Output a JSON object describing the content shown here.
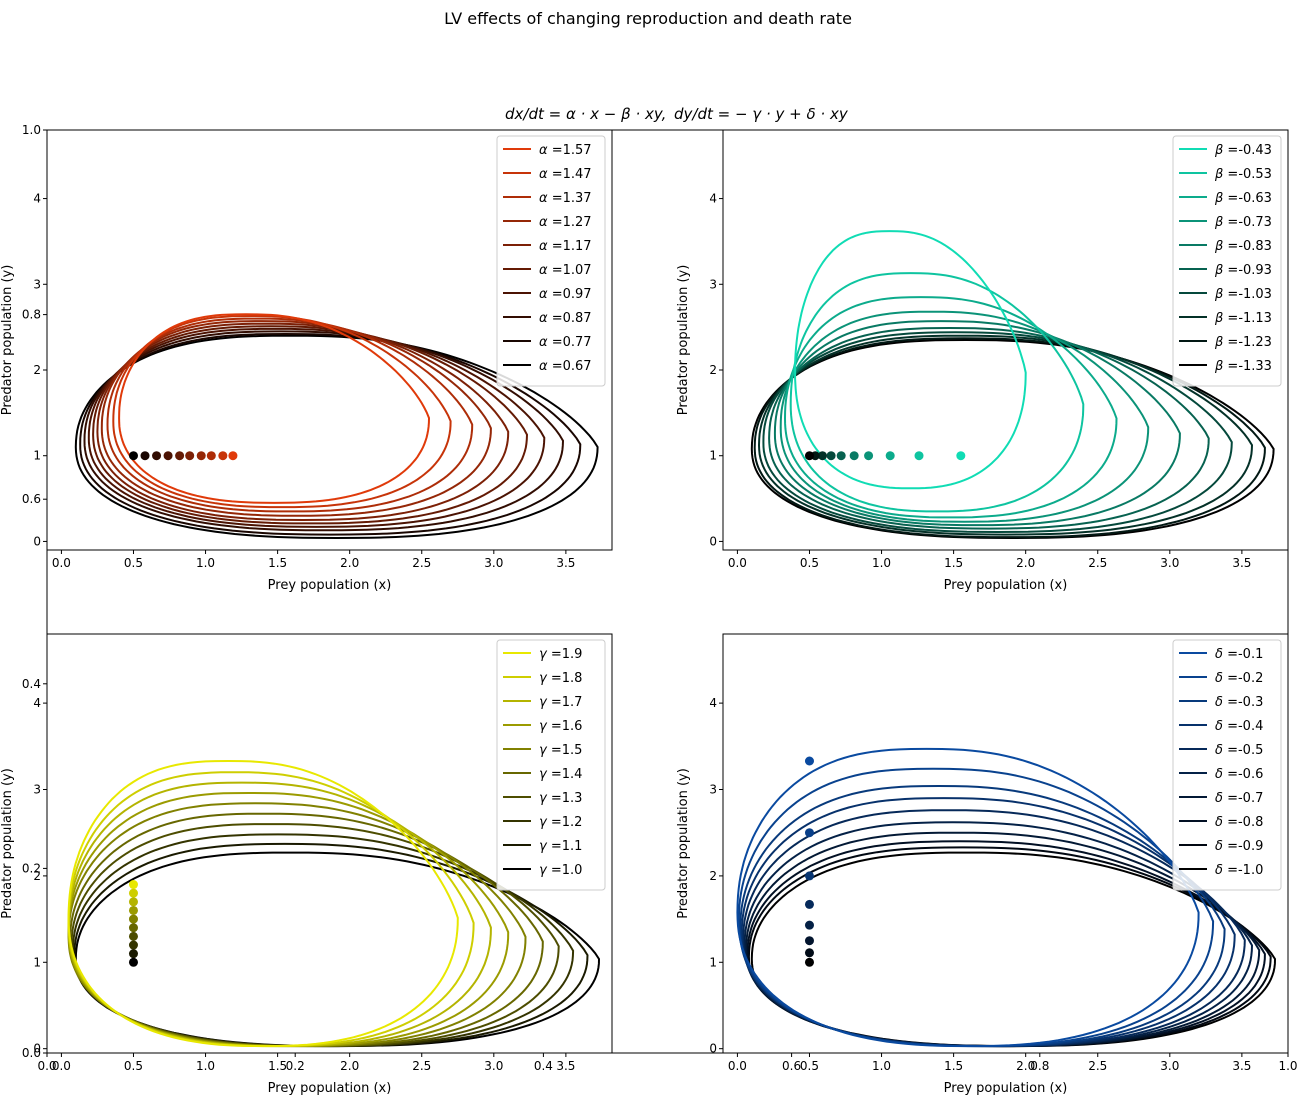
{
  "figure": {
    "suptitle": "LV effects of changing reproduction and death rate",
    "equation_left": "dx/dt = α · x − β · xy,",
    "equation_right": "dy/dt = − γ · y + δ · xy",
    "background_ticks": {
      "x": [
        "0.0",
        "0.2",
        "0.4",
        "0.6",
        "0.8",
        "1.0"
      ],
      "y": [
        "0.0",
        "0.2",
        "0.4",
        "0.6",
        "0.8",
        "1.0"
      ]
    }
  },
  "chart_data": [
    {
      "type": "line",
      "id": "alpha",
      "xlabel": "Prey population (x)",
      "ylabel": "Predator population (y)",
      "xlim": [
        -0.1,
        3.82
      ],
      "ylim": [
        -0.1,
        4.8
      ],
      "xticks": [
        "0.0",
        "0.5",
        "1.0",
        "1.5",
        "2.0",
        "2.5",
        "3.0",
        "3.5"
      ],
      "yticks": [
        "0",
        "1",
        "2",
        "3",
        "4"
      ],
      "legend_position": "top-right",
      "legend_symbol": "α",
      "color_start": "#e03a0a",
      "color_end": "#000000",
      "series": [
        {
          "name": "=1.57",
          "xmin": 0.4,
          "xmax": 2.55,
          "ymin": 0.45,
          "ymax": 2.65
        },
        {
          "name": "=1.47",
          "xmin": 0.36,
          "xmax": 2.7,
          "ymin": 0.4,
          "ymax": 2.63
        },
        {
          "name": "=1.37",
          "xmin": 0.32,
          "xmax": 2.85,
          "ymin": 0.35,
          "ymax": 2.6
        },
        {
          "name": "=1.27",
          "xmin": 0.28,
          "xmax": 2.98,
          "ymin": 0.3,
          "ymax": 2.57
        },
        {
          "name": "=1.17",
          "xmin": 0.25,
          "xmax": 3.1,
          "ymin": 0.25,
          "ymax": 2.54
        },
        {
          "name": "=1.07",
          "xmin": 0.22,
          "xmax": 3.23,
          "ymin": 0.21,
          "ymax": 2.51
        },
        {
          "name": "=0.97",
          "xmin": 0.19,
          "xmax": 3.35,
          "ymin": 0.17,
          "ymax": 2.48
        },
        {
          "name": "=0.87",
          "xmin": 0.16,
          "xmax": 3.48,
          "ymin": 0.13,
          "ymax": 2.45
        },
        {
          "name": "=0.77",
          "xmin": 0.13,
          "xmax": 3.6,
          "ymin": 0.08,
          "ymax": 2.42
        },
        {
          "name": "=0.67",
          "xmin": 0.1,
          "xmax": 3.72,
          "ymin": 0.04,
          "ymax": 2.4
        }
      ],
      "equilibria": [
        [
          1.19,
          1
        ],
        [
          1.12,
          1
        ],
        [
          1.04,
          1
        ],
        [
          0.97,
          1
        ],
        [
          0.89,
          1
        ],
        [
          0.82,
          1
        ],
        [
          0.74,
          1
        ],
        [
          0.66,
          1
        ],
        [
          0.58,
          1
        ],
        [
          0.5,
          1
        ]
      ]
    },
    {
      "type": "line",
      "id": "beta",
      "xlabel": "Prey population (x)",
      "ylabel": "Predator population (y)",
      "xlim": [
        -0.1,
        3.82
      ],
      "ylim": [
        -0.1,
        4.8
      ],
      "xticks": [
        "0.0",
        "0.5",
        "1.0",
        "1.5",
        "2.0",
        "2.5",
        "3.0",
        "3.5"
      ],
      "yticks": [
        "0",
        "1",
        "2",
        "3",
        "4"
      ],
      "legend_position": "top-right",
      "legend_symbol": "β",
      "color_start": "#10dcb4",
      "color_end": "#000000",
      "series": [
        {
          "name": "=-0.43",
          "xmin": 0.4,
          "xmax": 2.0,
          "ymin": 0.62,
          "ymax": 3.62
        },
        {
          "name": "=-0.53",
          "xmin": 0.37,
          "xmax": 2.4,
          "ymin": 0.35,
          "ymax": 3.13
        },
        {
          "name": "=-0.63",
          "xmin": 0.33,
          "xmax": 2.63,
          "ymin": 0.28,
          "ymax": 2.85
        },
        {
          "name": "=-0.73",
          "xmin": 0.3,
          "xmax": 2.85,
          "ymin": 0.23,
          "ymax": 2.68
        },
        {
          "name": "=-0.83",
          "xmin": 0.26,
          "xmax": 3.07,
          "ymin": 0.19,
          "ymax": 2.57
        },
        {
          "name": "=-0.93",
          "xmin": 0.22,
          "xmax": 3.27,
          "ymin": 0.15,
          "ymax": 2.49
        },
        {
          "name": "=-1.03",
          "xmin": 0.18,
          "xmax": 3.43,
          "ymin": 0.11,
          "ymax": 2.44
        },
        {
          "name": "=-1.13",
          "xmin": 0.15,
          "xmax": 3.57,
          "ymin": 0.08,
          "ymax": 2.4
        },
        {
          "name": "=-1.23",
          "xmin": 0.12,
          "xmax": 3.66,
          "ymin": 0.05,
          "ymax": 2.37
        },
        {
          "name": "=-1.33",
          "xmin": 0.1,
          "xmax": 3.72,
          "ymin": 0.04,
          "ymax": 2.35
        }
      ],
      "equilibria": [
        [
          1.55,
          1
        ],
        [
          1.26,
          1
        ],
        [
          1.06,
          1
        ],
        [
          0.91,
          1
        ],
        [
          0.81,
          1
        ],
        [
          0.72,
          1
        ],
        [
          0.65,
          1
        ],
        [
          0.59,
          1
        ],
        [
          0.54,
          1
        ],
        [
          0.5,
          1
        ]
      ]
    },
    {
      "type": "line",
      "id": "gamma",
      "xlabel": "Prey population (x)",
      "ylabel": "Predator population (y)",
      "xlim": [
        -0.1,
        3.82
      ],
      "ylim": [
        -0.05,
        4.8
      ],
      "xticks": [
        "0.0",
        "0.5",
        "1.0",
        "1.5",
        "2.0",
        "2.5",
        "3.0",
        "3.5"
      ],
      "yticks": [
        "0",
        "1",
        "2",
        "3",
        "4"
      ],
      "legend_position": "top-right",
      "legend_symbol": "γ",
      "color_start": "#e8e800",
      "color_end": "#000000",
      "series": [
        {
          "name": "=1.9",
          "xmin": 0.05,
          "xmax": 2.75,
          "ymin": 0.03,
          "ymax": 3.33
        },
        {
          "name": "=1.8",
          "xmin": 0.05,
          "xmax": 2.86,
          "ymin": 0.03,
          "ymax": 3.2
        },
        {
          "name": "=1.7",
          "xmin": 0.05,
          "xmax": 2.98,
          "ymin": 0.03,
          "ymax": 3.08
        },
        {
          "name": "=1.6",
          "xmin": 0.05,
          "xmax": 3.1,
          "ymin": 0.03,
          "ymax": 2.96
        },
        {
          "name": "=1.5",
          "xmin": 0.05,
          "xmax": 3.22,
          "ymin": 0.03,
          "ymax": 2.84
        },
        {
          "name": "=1.4",
          "xmin": 0.06,
          "xmax": 3.34,
          "ymin": 0.03,
          "ymax": 2.72
        },
        {
          "name": "=1.3",
          "xmin": 0.07,
          "xmax": 3.45,
          "ymin": 0.03,
          "ymax": 2.6
        },
        {
          "name": "=1.2",
          "xmin": 0.08,
          "xmax": 3.55,
          "ymin": 0.03,
          "ymax": 2.48
        },
        {
          "name": "=1.1",
          "xmin": 0.09,
          "xmax": 3.65,
          "ymin": 0.03,
          "ymax": 2.37
        },
        {
          "name": "=1.0",
          "xmin": 0.1,
          "xmax": 3.73,
          "ymin": 0.03,
          "ymax": 2.27
        }
      ],
      "equilibria": [
        [
          0.5,
          1.9
        ],
        [
          0.5,
          1.8
        ],
        [
          0.5,
          1.7
        ],
        [
          0.5,
          1.6
        ],
        [
          0.5,
          1.5
        ],
        [
          0.5,
          1.4
        ],
        [
          0.5,
          1.3
        ],
        [
          0.5,
          1.2
        ],
        [
          0.5,
          1.1
        ],
        [
          0.5,
          1.0
        ]
      ]
    },
    {
      "type": "line",
      "id": "delta",
      "xlabel": "Prey population (x)",
      "ylabel": "Predator population (y)",
      "xlim": [
        -0.1,
        3.82
      ],
      "ylim": [
        -0.05,
        4.8
      ],
      "xticks": [
        "0.0",
        "0.5",
        "1.0",
        "1.5",
        "2.0",
        "2.5",
        "3.0",
        "3.5"
      ],
      "yticks": [
        "0",
        "1",
        "2",
        "3",
        "4"
      ],
      "legend_position": "top-right",
      "legend_symbol": "δ",
      "color_start": "#0a4aa0",
      "color_end": "#000000",
      "series": [
        {
          "name": "=-0.1",
          "xmin": 0.0,
          "xmax": 3.2,
          "ymin": 0.03,
          "ymax": 3.47
        },
        {
          "name": "=-0.2",
          "xmin": 0.01,
          "xmax": 3.3,
          "ymin": 0.03,
          "ymax": 3.24
        },
        {
          "name": "=-0.3",
          "xmin": 0.02,
          "xmax": 3.38,
          "ymin": 0.03,
          "ymax": 3.04
        },
        {
          "name": "=-0.4",
          "xmin": 0.03,
          "xmax": 3.45,
          "ymin": 0.03,
          "ymax": 2.9
        },
        {
          "name": "=-0.5",
          "xmin": 0.04,
          "xmax": 3.52,
          "ymin": 0.03,
          "ymax": 2.76
        },
        {
          "name": "=-0.6",
          "xmin": 0.05,
          "xmax": 3.57,
          "ymin": 0.03,
          "ymax": 2.62
        },
        {
          "name": "=-0.7",
          "xmin": 0.06,
          "xmax": 3.62,
          "ymin": 0.03,
          "ymax": 2.5
        },
        {
          "name": "=-0.8",
          "xmin": 0.07,
          "xmax": 3.66,
          "ymin": 0.03,
          "ymax": 2.4
        },
        {
          "name": "=-0.9",
          "xmin": 0.08,
          "xmax": 3.7,
          "ymin": 0.03,
          "ymax": 2.33
        },
        {
          "name": "=-1.0",
          "xmin": 0.1,
          "xmax": 3.73,
          "ymin": 0.03,
          "ymax": 2.27
        }
      ],
      "equilibria": [
        [
          0.5,
          3.33
        ],
        [
          0.5,
          2.5
        ],
        [
          0.5,
          2.0
        ],
        [
          0.5,
          1.67
        ],
        [
          0.5,
          1.43
        ],
        [
          0.5,
          1.25
        ],
        [
          0.5,
          1.11
        ],
        [
          0.5,
          1.0
        ]
      ]
    }
  ]
}
